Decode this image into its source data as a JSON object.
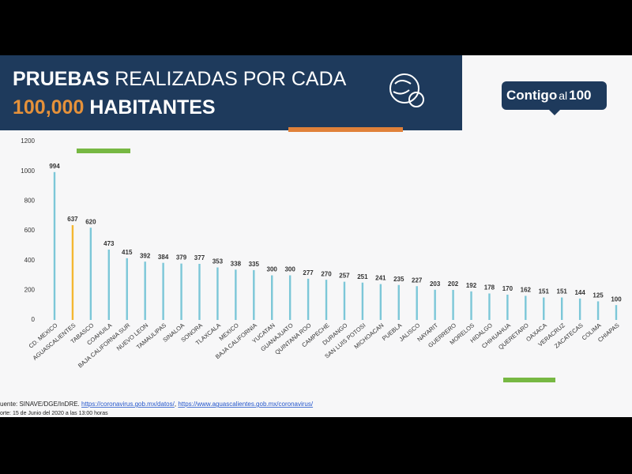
{
  "header": {
    "title_line1_bold": "PRUEBAS",
    "title_line1_rest": "REALIZADAS POR CADA",
    "title_line2_number": "100,000",
    "title_line2_rest": "HABITANTES"
  },
  "logo": {
    "part1": "Contigo",
    "part2": "al",
    "part3": "100"
  },
  "chart_data": {
    "type": "bar",
    "categories": [
      "CD. MEXICO",
      "AGUASCALIENTES",
      "TABASCO",
      "COAHUILA",
      "BAJA CALIFORNIA SUR",
      "NUEVO LEON",
      "TAMAULIPAS",
      "SINALOA",
      "SONORA",
      "TLAXCALA",
      "MEXICO",
      "BAJA CALIFORNIA",
      "YUCATAN",
      "GUANAJUATO",
      "QUINTANA ROO",
      "CAMPECHE",
      "DURANGO",
      "SAN LUIS POTOSI",
      "MICHOACAN",
      "PUEBLA",
      "JALISCO",
      "NAYARIT",
      "GUERRERO",
      "MORELOS",
      "HIDALGO",
      "CHIHUAHUA",
      "QUERETARO",
      "OAXACA",
      "VERACRUZ",
      "ZACATECAS",
      "COLIMA",
      "CHIAPAS"
    ],
    "values": [
      994,
      637,
      620,
      473,
      415,
      392,
      384,
      379,
      377,
      353,
      338,
      335,
      300,
      300,
      277,
      270,
      257,
      251,
      241,
      235,
      227,
      203,
      202,
      192,
      178,
      170,
      162,
      151,
      151,
      144,
      125,
      100
    ],
    "color": "#7cc7d8",
    "highlight_color": "#f4b731",
    "highlight": [
      "AGUASCALIENTES"
    ],
    "ylim": [
      0,
      1200
    ],
    "yticks": [
      0,
      200,
      400,
      600,
      800,
      1000,
      1200
    ],
    "grid": false
  },
  "footer": {
    "source_prefix": "uente: SINAVE/DGE/InDRE.",
    "link1": "https://coronavirus.gob.mx/datos/",
    "separator": ",",
    "link2": "https://www.aguascalientes.gob.mx/coronavirus/",
    "report": "orte: 15 de Junio del 2020 a las 13:00 horas"
  }
}
